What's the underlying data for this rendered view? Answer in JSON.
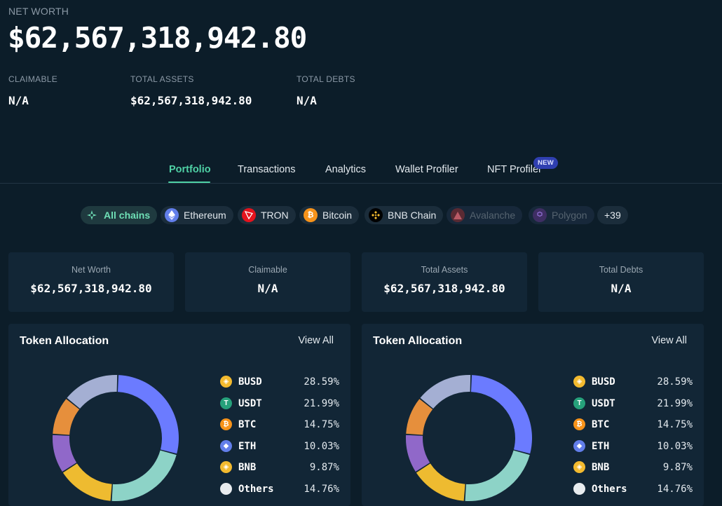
{
  "header": {
    "net_worth_label": "NET WORTH",
    "net_worth_value": "$62,567,318,942.80",
    "claimable_label": "CLAIMABLE",
    "claimable_value": "N/A",
    "total_assets_label": "TOTAL ASSETS",
    "total_assets_value": "$62,567,318,942.80",
    "total_debts_label": "TOTAL DEBTS",
    "total_debts_value": "N/A"
  },
  "tabs": [
    {
      "label": "Portfolio",
      "active": true
    },
    {
      "label": "Transactions"
    },
    {
      "label": "Analytics"
    },
    {
      "label": "Wallet Profiler"
    },
    {
      "label": "NFT Profiler",
      "badge": "NEW"
    }
  ],
  "chains": [
    {
      "label": "All chains",
      "icon": "all-chains-icon",
      "state": "active"
    },
    {
      "label": "Ethereum",
      "icon": "ethereum-icon"
    },
    {
      "label": "TRON",
      "icon": "tron-icon"
    },
    {
      "label": "Bitcoin",
      "icon": "bitcoin-icon"
    },
    {
      "label": "BNB Chain",
      "icon": "bnb-chain-icon"
    },
    {
      "label": "Avalanche",
      "icon": "avalanche-icon",
      "state": "disabled"
    },
    {
      "label": "Polygon",
      "icon": "polygon-icon",
      "state": "disabled"
    },
    {
      "label": "+39"
    }
  ],
  "cards": [
    {
      "label": "Net Worth",
      "value": "$62,567,318,942.80"
    },
    {
      "label": "Claimable",
      "value": "N/A"
    },
    {
      "label": "Total Assets",
      "value": "$62,567,318,942.80"
    },
    {
      "label": "Total Debts",
      "value": "N/A"
    }
  ],
  "panels": [
    {
      "title": "Token Allocation",
      "view_all": "View All",
      "tokens": [
        {
          "name": "BUSD",
          "pct": "28.59%",
          "color": "#6b7bff",
          "icon_bg": "#f3ba2f",
          "icon": "busd-icon"
        },
        {
          "name": "USDT",
          "pct": "21.99%",
          "color": "#8dd3c7",
          "icon_bg": "#26a17b",
          "icon": "usdt-icon"
        },
        {
          "name": "BTC",
          "pct": "14.75%",
          "color": "#eebb30",
          "icon_bg": "#f7931a",
          "icon": "btc-icon"
        },
        {
          "name": "ETH",
          "pct": "10.03%",
          "color": "#9068c9",
          "icon_bg": "#627eea",
          "icon": "eth-icon"
        },
        {
          "name": "BNB",
          "pct": "9.87%",
          "color": "#e68f3c",
          "icon_bg": "#f3ba2f",
          "icon": "bnb-icon"
        },
        {
          "name": "Others",
          "pct": "14.76%",
          "color": "#a4afd3",
          "icon_bg": "#e8ecef",
          "icon": "others-icon"
        }
      ]
    },
    {
      "title": "Token Allocation",
      "view_all": "View All",
      "tokens": [
        {
          "name": "BUSD",
          "pct": "28.59%",
          "color": "#6b7bff",
          "icon_bg": "#f3ba2f",
          "icon": "busd-icon"
        },
        {
          "name": "USDT",
          "pct": "21.99%",
          "color": "#8dd3c7",
          "icon_bg": "#26a17b",
          "icon": "usdt-icon"
        },
        {
          "name": "BTC",
          "pct": "14.75%",
          "color": "#eebb30",
          "icon_bg": "#f7931a",
          "icon": "btc-icon"
        },
        {
          "name": "ETH",
          "pct": "10.03%",
          "color": "#9068c9",
          "icon_bg": "#627eea",
          "icon": "eth-icon"
        },
        {
          "name": "BNB",
          "pct": "9.87%",
          "color": "#e68f3c",
          "icon_bg": "#f3ba2f",
          "icon": "bnb-icon"
        },
        {
          "name": "Others",
          "pct": "14.76%",
          "color": "#a4afd3",
          "icon_bg": "#e8ecef",
          "icon": "others-icon"
        }
      ]
    }
  ],
  "chart_data": [
    {
      "type": "pie",
      "title": "Token Allocation",
      "categories": [
        "BUSD",
        "USDT",
        "BTC",
        "ETH",
        "BNB",
        "Others"
      ],
      "values": [
        28.59,
        21.99,
        14.75,
        10.03,
        9.87,
        14.76
      ]
    },
    {
      "type": "pie",
      "title": "Token Allocation",
      "categories": [
        "BUSD",
        "USDT",
        "BTC",
        "ETH",
        "BNB",
        "Others"
      ],
      "values": [
        28.59,
        21.99,
        14.75,
        10.03,
        9.87,
        14.76
      ]
    }
  ]
}
